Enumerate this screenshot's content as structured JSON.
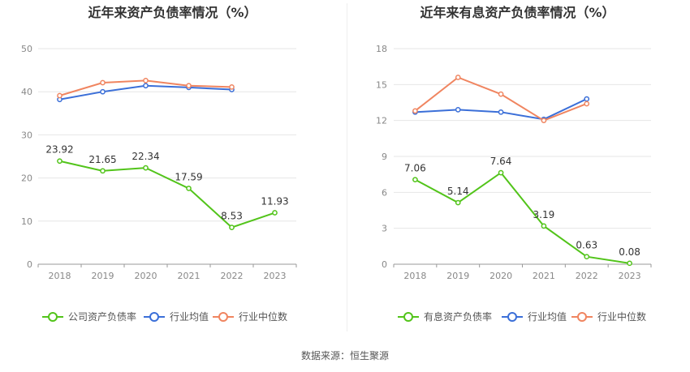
{
  "source": "数据来源：恒生聚源",
  "chart_data": [
    {
      "type": "line",
      "title": "近年来资产负债率情况（%）",
      "categories": [
        "2018",
        "2019",
        "2020",
        "2021",
        "2022",
        "2023"
      ],
      "ylim": [
        0,
        50
      ],
      "yticks": [
        0,
        10,
        20,
        30,
        40,
        50
      ],
      "grid": true,
      "legend_position": "bottom",
      "series": [
        {
          "name": "公司资产负债率",
          "color": "#52c41a",
          "values": [
            23.92,
            21.65,
            22.34,
            17.59,
            8.53,
            11.93
          ],
          "labels": [
            "23.92",
            "21.65",
            "22.34",
            "17.59",
            "8.53",
            "11.93"
          ]
        },
        {
          "name": "行业均值",
          "color": "#3b6fd8",
          "values": [
            38.2,
            40.0,
            41.4,
            41.0,
            40.5,
            null
          ]
        },
        {
          "name": "行业中位数",
          "color": "#f08560",
          "values": [
            39.1,
            42.1,
            42.6,
            41.4,
            41.1,
            null
          ]
        }
      ]
    },
    {
      "type": "line",
      "title": "近年来有息资产负债率情况（%）",
      "categories": [
        "2018",
        "2019",
        "2020",
        "2021",
        "2022",
        "2023"
      ],
      "ylim": [
        0,
        18
      ],
      "yticks": [
        0,
        3,
        6,
        9,
        12,
        15,
        18
      ],
      "grid": true,
      "legend_position": "bottom",
      "series": [
        {
          "name": "有息资产负债率",
          "color": "#52c41a",
          "values": [
            7.06,
            5.14,
            7.64,
            3.19,
            0.63,
            0.08
          ],
          "labels": [
            "7.06",
            "5.14",
            "7.64",
            "3.19",
            "0.63",
            "0.08"
          ]
        },
        {
          "name": "行业均值",
          "color": "#3b6fd8",
          "values": [
            12.7,
            12.9,
            12.7,
            12.1,
            13.8,
            null
          ]
        },
        {
          "name": "行业中位数",
          "color": "#f08560",
          "values": [
            12.8,
            15.6,
            14.2,
            12.0,
            13.4,
            null
          ]
        }
      ]
    }
  ]
}
